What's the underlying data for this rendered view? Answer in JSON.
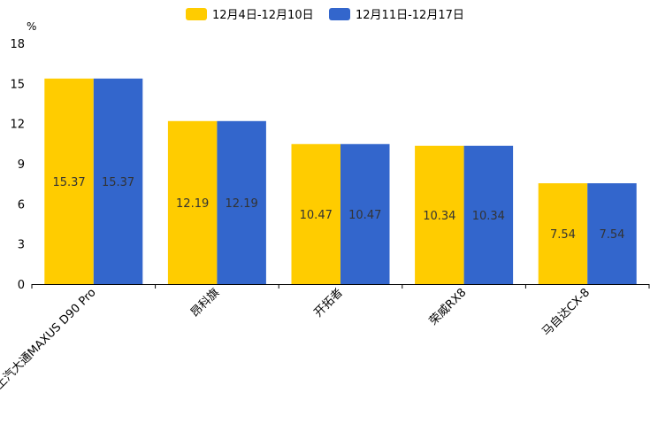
{
  "chart_data": {
    "type": "bar",
    "unit": "%",
    "categories": [
      "上汽大通MAXUS D90 Pro",
      "昂科旗",
      "开拓者",
      "荣威RX8",
      "马自达CX-8"
    ],
    "series": [
      {
        "name": "12月4日-12月10日",
        "color": "#FFCC00",
        "values": [
          15.37,
          12.19,
          10.47,
          10.34,
          7.54
        ]
      },
      {
        "name": "12月11日-12月17日",
        "color": "#3366CC",
        "values": [
          15.37,
          12.19,
          10.47,
          10.34,
          7.54
        ]
      }
    ],
    "ylim": [
      0,
      18
    ],
    "yticks": [
      0,
      3,
      6,
      9,
      12,
      15,
      18
    ],
    "legend_position": "top-center",
    "grid": false
  }
}
